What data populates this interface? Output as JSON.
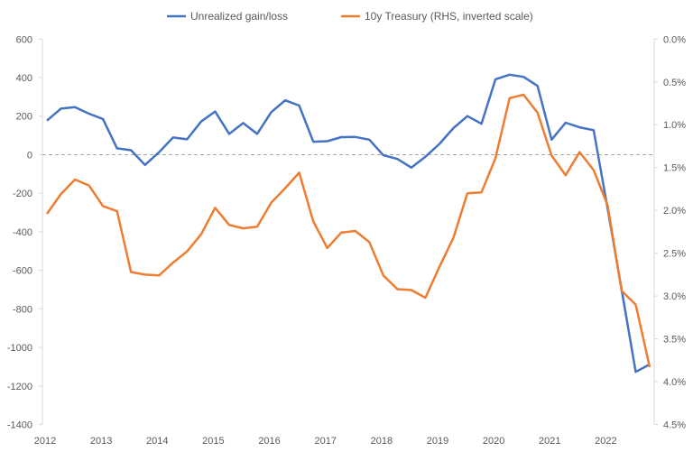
{
  "chart_data": {
    "type": "line",
    "title": "",
    "x": [
      "2012Q1",
      "2012Q2",
      "2012Q3",
      "2012Q4",
      "2013Q1",
      "2013Q2",
      "2013Q3",
      "2013Q4",
      "2014Q1",
      "2014Q2",
      "2014Q3",
      "2014Q4",
      "2015Q1",
      "2015Q2",
      "2015Q3",
      "2015Q4",
      "2016Q1",
      "2016Q2",
      "2016Q3",
      "2016Q4",
      "2017Q1",
      "2017Q2",
      "2017Q3",
      "2017Q4",
      "2018Q1",
      "2018Q2",
      "2018Q3",
      "2018Q4",
      "2019Q1",
      "2019Q2",
      "2019Q3",
      "2019Q4",
      "2020Q1",
      "2020Q2",
      "2020Q3",
      "2020Q4",
      "2021Q1",
      "2021Q2",
      "2021Q3",
      "2021Q4",
      "2022Q1",
      "2022Q2",
      "2022Q3",
      "2022Q4"
    ],
    "x_tick_labels": [
      "2012",
      "2013",
      "2014",
      "2015",
      "2016",
      "2017",
      "2018",
      "2019",
      "2020",
      "2021",
      "2022"
    ],
    "series": [
      {
        "name": "Unrealized gain/loss",
        "axis": "left",
        "color": "#4472C4",
        "values": [
          177,
          239,
          247,
          213,
          185,
          33,
          23,
          -53,
          13,
          89,
          80,
          172,
          224,
          108,
          164,
          108,
          221,
          282,
          255,
          67,
          70,
          91,
          92,
          78,
          -3,
          -22,
          -67,
          -11,
          56,
          138,
          200,
          161,
          391,
          415,
          404,
          357,
          78,
          166,
          142,
          127,
          -280,
          -700,
          -1127,
          -1088
        ]
      },
      {
        "name": "10y Treasury (RHS, inverted scale)",
        "axis": "right",
        "color": "#ED7D31",
        "values": [
          2.04,
          1.81,
          1.64,
          1.71,
          1.95,
          2.01,
          2.72,
          2.75,
          2.76,
          2.61,
          2.48,
          2.28,
          1.97,
          2.17,
          2.21,
          2.19,
          1.91,
          1.74,
          1.56,
          2.13,
          2.44,
          2.26,
          2.24,
          2.37,
          2.76,
          2.92,
          2.93,
          3.02,
          2.66,
          2.32,
          1.8,
          1.79,
          1.39,
          0.69,
          0.65,
          0.86,
          1.36,
          1.59,
          1.32,
          1.53,
          1.94,
          2.94,
          3.1,
          3.83
        ]
      }
    ],
    "y_left": {
      "range": [
        -1400,
        600
      ],
      "ticks": [
        "600",
        "400",
        "200",
        "0",
        "-200",
        "-400",
        "-600",
        "-800",
        "-1000",
        "-1200",
        "-1400"
      ]
    },
    "y_right": {
      "range": [
        0.0,
        4.5
      ],
      "inverted": true,
      "ticks": [
        "0.0%",
        "0.5%",
        "1.0%",
        "1.5%",
        "2.0%",
        "2.5%",
        "3.0%",
        "3.5%",
        "4.0%",
        "4.5%"
      ]
    },
    "zero_line": "dashed",
    "grid": false,
    "legend_position": "top"
  }
}
